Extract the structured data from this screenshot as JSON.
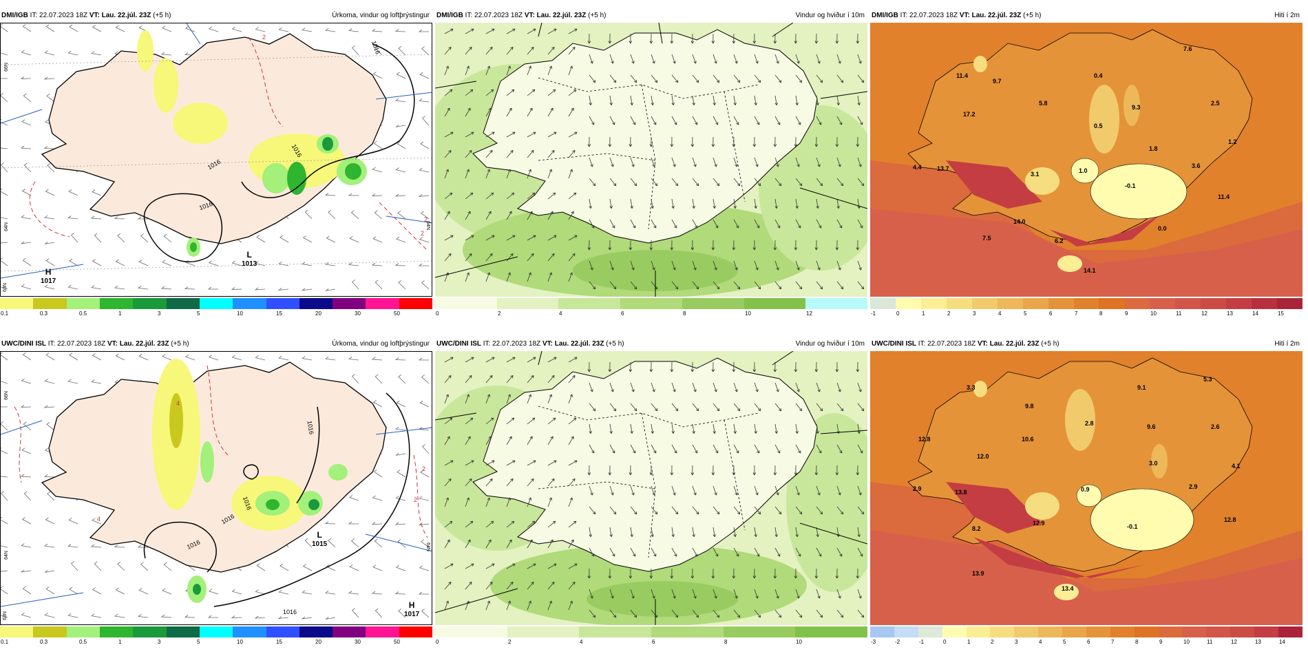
{
  "colors": {
    "precip": [
      "#f7f77a",
      "#c8c81e",
      "#a3f07a",
      "#2fb52f",
      "#1a9a3a",
      "#0f6a46",
      "#00ffff",
      "#1e90ff",
      "#3050ff",
      "#0a0a8a",
      "#800080",
      "#ff1493",
      "#ff0000"
    ],
    "wind": [
      "#f7fbe4",
      "#e3f2c0",
      "#c9e79a",
      "#b1da7a",
      "#98cc60",
      "#82c24a",
      "#b8fafa",
      "#9ee7e5",
      "#7ed3d3",
      "#5ec0c0"
    ],
    "temp_top": [
      "#d9e8d9",
      "#fffcb0",
      "#fbee94",
      "#f6de80",
      "#f1ca6c",
      "#edb85a",
      "#e9a649",
      "#e59338",
      "#e1812c",
      "#de7323",
      "#db6a3d",
      "#d7604a",
      "#d25549",
      "#cc4b45",
      "#c43d42",
      "#b8303d",
      "#aa2338"
    ],
    "temp_bot": [
      "#a7c8f0",
      "#c4dcf6",
      "#dde9d9",
      "#fffcb0",
      "#fbee94",
      "#f6de80",
      "#f1ca6c",
      "#edb85a",
      "#e9a649",
      "#e59338",
      "#e1812c",
      "#de7323",
      "#db6a3d",
      "#d7604a",
      "#d25549",
      "#cc4b45",
      "#c43d42",
      "#aa2338"
    ]
  },
  "panels": {
    "top_precip": {
      "model": "DMI/IGB",
      "it": "IT: 22.07.2023 18Z",
      "vt": "VT: Lau. 22.júl. 23Z",
      "lead": "(+5 h)",
      "title": "Úrkoma, vindur og loftþrýstingur",
      "ticks": [
        "0.1",
        "0.3",
        "0.5",
        "1",
        "3",
        "5",
        "10",
        "15",
        "20",
        "30",
        "50"
      ],
      "pressure_labels": [
        {
          "system": "H",
          "value": "1017"
        },
        {
          "system": "L",
          "value": "1013"
        }
      ],
      "isobar_labels": [
        "1016",
        "1016",
        "1016",
        "1016"
      ],
      "temp_contours": [
        "2",
        "2",
        "2",
        "2"
      ],
      "lat_labels": [
        "66N",
        "64N",
        "63N",
        "64N"
      ]
    },
    "top_wind": {
      "model": "DMI/IGB",
      "it": "IT: 22.07.2023 18Z",
      "vt": "VT: Lau. 22.júl. 23Z",
      "lead": "(+5 h)",
      "title": "Vindur og hviður í 10m",
      "ticks": [
        "0",
        "2",
        "4",
        "6",
        "8",
        "10",
        "12"
      ]
    },
    "top_temp": {
      "model": "DMI/IGB",
      "it": "IT: 22.07.2023 18Z",
      "vt": "VT: Lau. 22.júl. 23Z",
      "lead": "(+5 h)",
      "title": "Hiti í 2m",
      "ticks": [
        "-1",
        "0",
        "1",
        "2",
        "3",
        "4",
        "5",
        "6",
        "7",
        "8",
        "9",
        "10",
        "11",
        "12",
        "13",
        "14",
        "15"
      ],
      "station_values": [
        "11.4",
        "9.7",
        "0.4",
        "7.6",
        "5.8",
        "9.3",
        "2.5",
        "17.2",
        "0.5",
        "1.8",
        "1.2",
        "4.4",
        "13.7",
        "3.1",
        "1.0",
        "3.6",
        "-0.1",
        "11.4",
        "14.0",
        "0.0",
        "7.5",
        "6.2",
        "14.1"
      ]
    },
    "bot_precip": {
      "model": "UWC/DINI ISL",
      "it": "IT: 22.07.2023 18Z",
      "vt": "VT: Lau. 22.júl. 23Z",
      "lead": "(+5 h)",
      "title": "Úrkoma, vindur og loftþrýstingur",
      "ticks": [
        "0.1",
        "0.3",
        "0.5",
        "1",
        "3",
        "5",
        "10",
        "15",
        "20",
        "30",
        "50"
      ],
      "pressure_labels": [
        {
          "system": "H",
          "value": "1017"
        },
        {
          "system": "L",
          "value": "1015"
        }
      ],
      "isobar_labels": [
        "1016",
        "1016",
        "1016",
        "1016",
        "1016"
      ],
      "temp_contours": [
        "4",
        "2",
        "4",
        "2"
      ],
      "lat_labels": [
        "66N",
        "64N",
        "63N",
        "64N"
      ]
    },
    "bot_wind": {
      "model": "UWC/DINI ISL",
      "it": "IT: 22.07.2023 18Z",
      "vt": "VT: Lau. 22.júl. 23Z",
      "lead": "(+5 h)",
      "title": "Vindur og hviður í 10m",
      "ticks": [
        "0",
        "2",
        "4",
        "6",
        "8",
        "10"
      ]
    },
    "bot_temp": {
      "model": "UWC/DINI ISL",
      "it": "IT: 22.07.2023 18Z",
      "vt": "VT: Lau. 22.júl. 23Z",
      "lead": "(+5 h)",
      "title": "Hiti í 2m",
      "ticks": [
        "-3",
        "-2",
        "-1",
        "0",
        "1",
        "2",
        "3",
        "4",
        "5",
        "6",
        "7",
        "8",
        "9",
        "10",
        "11",
        "12",
        "13",
        "14"
      ],
      "station_values": [
        "3.3",
        "9.1",
        "5.3",
        "9.8",
        "2.8",
        "9.6",
        "2.6",
        "12.8",
        "10.6",
        "12.0",
        "3.0",
        "4.1",
        "2.9",
        "13.8",
        "0.9",
        "2.9",
        "12.8",
        "8.2",
        "12.9",
        "-0.1",
        "13.9",
        "13.4"
      ]
    }
  }
}
